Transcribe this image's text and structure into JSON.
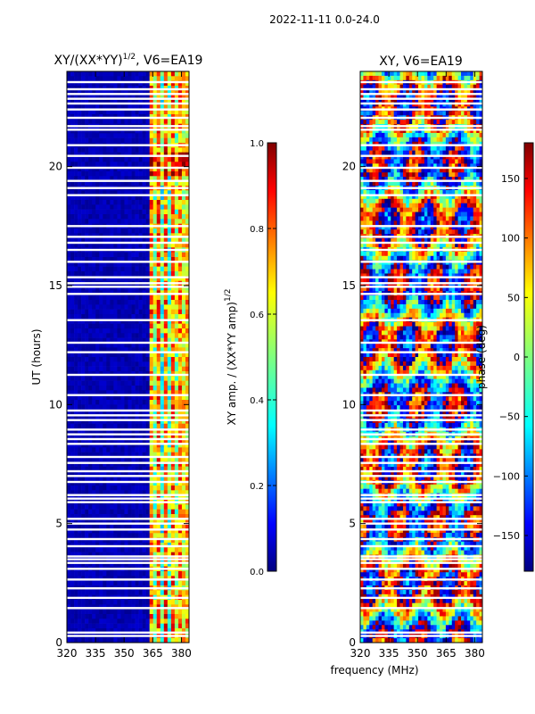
{
  "figure": {
    "suptitle": "2022-11-11 0.0-24.0",
    "xlabel": "frequency (MHz)"
  },
  "chart_data": [
    {
      "type": "heatmap",
      "title_main": "XY/(XX*YY)",
      "title_sup": "1/2",
      "title_rest": ", V6=EA19",
      "ylabel": "UT (hours)",
      "xlim": [
        320,
        384
      ],
      "ylim": [
        0,
        24
      ],
      "xticks": [
        320,
        335,
        350,
        365,
        380
      ],
      "yticks": [
        0,
        5,
        10,
        15,
        20
      ],
      "colorbar": {
        "label_main": "XY amp. / (XX*YY amp)",
        "label_sup": "1/2",
        "range": [
          0.0,
          1.0
        ],
        "ticks": [
          "0.0",
          "0.2",
          "0.4",
          "0.6",
          "0.8",
          "1.0"
        ],
        "colormap": "jet"
      }
    },
    {
      "type": "heatmap",
      "title": "XY, V6=EA19",
      "xlim": [
        320,
        384
      ],
      "ylim": [
        0,
        24
      ],
      "xticks": [
        320,
        335,
        350,
        365,
        380
      ],
      "yticks": [
        0,
        5,
        10,
        15,
        20
      ],
      "colorbar": {
        "label": "phase (deg)",
        "range": [
          -180,
          180
        ],
        "ticks": [
          "150",
          "100",
          "50",
          "0",
          "−50",
          "−100",
          "−150"
        ],
        "tick_values": [
          150,
          100,
          50,
          0,
          -50,
          -100,
          -150
        ],
        "colormap": "jet"
      }
    }
  ],
  "colors": {
    "jet": [
      "#00007f",
      "#0000ff",
      "#007fff",
      "#00ffff",
      "#7fff7f",
      "#ffff00",
      "#ff7f00",
      "#ff0000",
      "#7f0000"
    ],
    "axis": "#000000",
    "background": "#ffffff"
  },
  "flagged_hours": [
    0.28,
    0.42,
    1.45,
    1.88,
    2.28,
    2.65,
    3.1,
    3.35,
    3.5,
    3.62,
    4.05,
    4.35,
    4.75,
    5.0,
    5.2,
    5.9,
    6.05,
    6.2,
    6.75,
    7.0,
    7.2,
    7.55,
    7.8,
    8.35,
    8.55,
    8.75,
    8.95,
    9.35,
    9.55,
    9.75,
    10.4,
    11.25,
    12.2,
    12.6,
    13.55,
    14.65,
    14.95,
    15.1,
    15.35,
    16.0,
    16.5,
    16.8,
    17.05,
    17.5,
    18.8,
    19.1,
    19.4,
    19.95,
    20.45,
    20.9,
    21.55,
    21.7,
    22.05,
    22.4,
    22.65,
    22.85,
    23.05,
    23.25,
    23.55
  ]
}
